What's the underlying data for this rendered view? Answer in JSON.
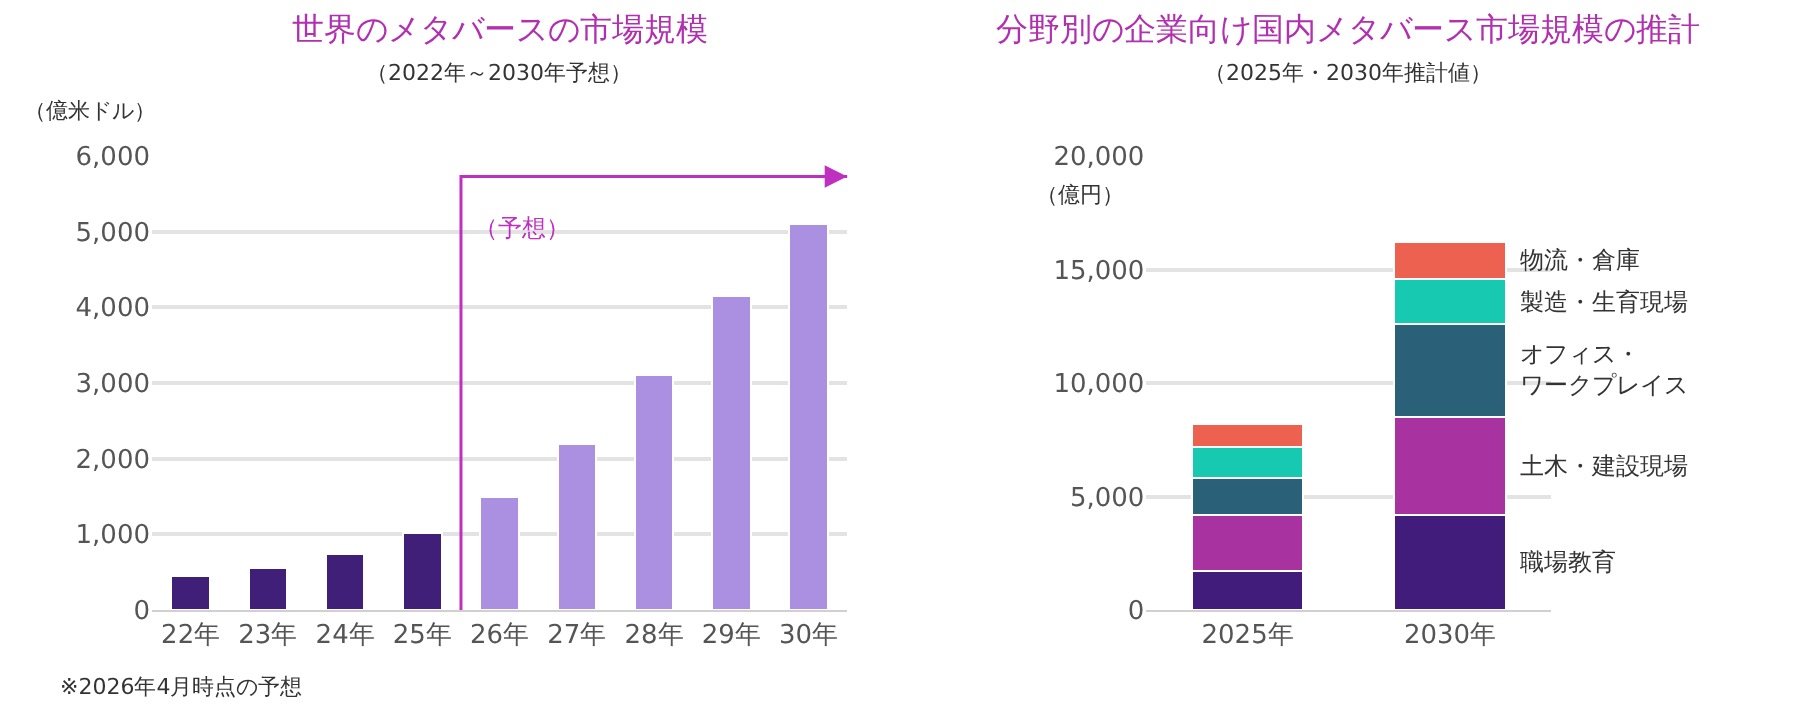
{
  "chart_data": [
    {
      "type": "bar",
      "title": "世界のメタバースの市場規模",
      "subtitle": "（2022年～2030年予想）",
      "ylabel": "（億米ドル）",
      "categories": [
        "22年",
        "23年",
        "24年",
        "25年",
        "26年",
        "27年",
        "28年",
        "29年",
        "30年"
      ],
      "values": [
        450,
        560,
        740,
        1020,
        1500,
        2200,
        3100,
        4150,
        5100
      ],
      "colors": [
        "#3f1f78",
        "#3f1f78",
        "#3f1f78",
        "#3f1f78",
        "#ab8fe0",
        "#ab8fe0",
        "#ab8fe0",
        "#ab8fe0",
        "#ab8fe0"
      ],
      "ylim": [
        0,
        6000
      ],
      "yticks": [
        0,
        {
          "value": 1000,
          "label": "1,000"
        },
        {
          "value": 2000,
          "label": "2,000"
        },
        {
          "value": 3000,
          "label": "3,000"
        },
        {
          "value": 4000,
          "label": "4,000"
        },
        {
          "value": 5000,
          "label": "5,000"
        },
        {
          "value": 6000,
          "label": "6,000"
        }
      ],
      "annotations": [
        "※2026年4月時点の予想",
        "（予想）"
      ],
      "grid": "y",
      "legend": false
    },
    {
      "type": "bar",
      "title": "分野別の企業向け国内メタバース市場規模の推計",
      "subtitle": "（2025年・2030年推計値）",
      "ylabel": "（億円）",
      "categories": [
        "2025年",
        "2030年"
      ],
      "stacked": true,
      "series": [
        {
          "name": "職場教育",
          "color": "#421c7a",
          "values": [
            1700,
            4200
          ]
        },
        {
          "name": "土木・建設現場",
          "color": "#a832a0",
          "values": [
            2500,
            4300
          ]
        },
        {
          "name": "オフィス・ワークプレイス",
          "color": "#2a6078",
          "values": [
            1600,
            4100
          ]
        },
        {
          "name": "製造・生育現場",
          "color": "#17c9b0",
          "values": [
            1400,
            2000
          ]
        },
        {
          "name": "物流・倉庫",
          "color": "#ec6150",
          "values": [
            1000,
            1600
          ]
        }
      ],
      "ylim": [
        0,
        20000
      ],
      "yticks": [
        0,
        {
          "value": 5000,
          "label": "5,000"
        },
        {
          "value": 10000,
          "label": "10,000"
        },
        {
          "value": 15000,
          "label": "15,000"
        },
        {
          "value": 20000,
          "label": "20,000"
        }
      ],
      "grid": "y",
      "legend": false
    }
  ]
}
